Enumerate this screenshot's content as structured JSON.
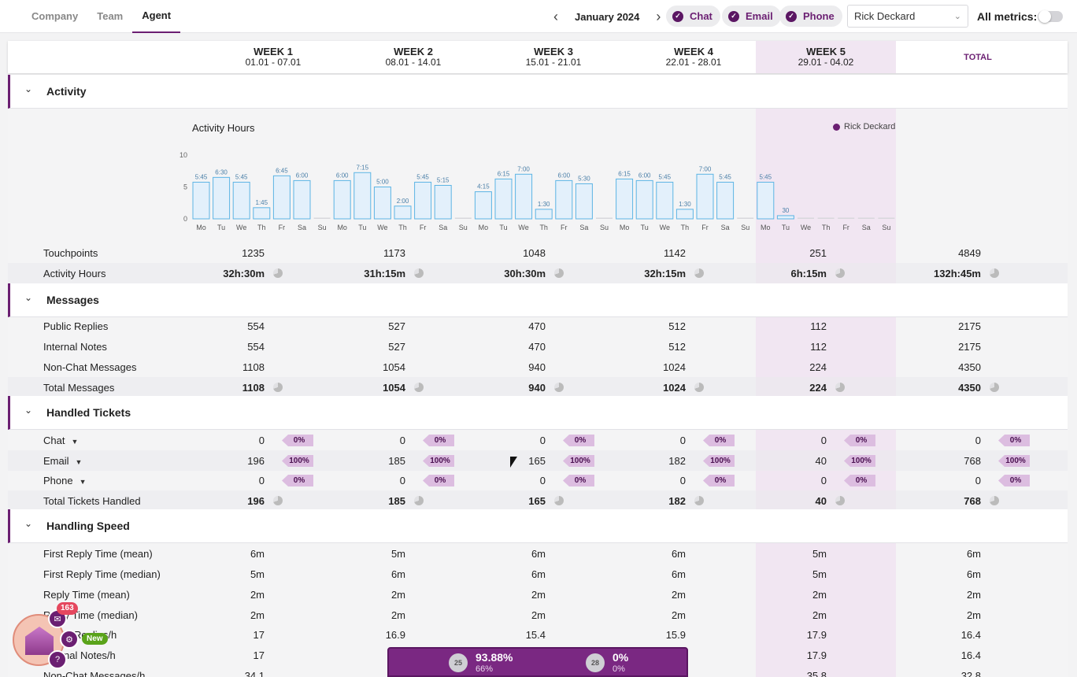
{
  "nav": {
    "tabs": [
      "Company",
      "Team",
      "Agent"
    ],
    "active": 2
  },
  "month": {
    "label": "January 2024"
  },
  "channels": [
    {
      "label": "Chat"
    },
    {
      "label": "Email"
    },
    {
      "label": "Phone"
    }
  ],
  "agent_select": {
    "value": "Rick Deckard"
  },
  "all_metrics": {
    "label": "All metrics:"
  },
  "weeks": [
    {
      "title": "WEEK 1",
      "range": "01.01 - 07.01"
    },
    {
      "title": "WEEK 2",
      "range": "08.01 - 14.01"
    },
    {
      "title": "WEEK 3",
      "range": "15.01 - 21.01"
    },
    {
      "title": "WEEK 4",
      "range": "22.01 - 28.01"
    },
    {
      "title": "WEEK 5",
      "range": "29.01 - 04.02"
    }
  ],
  "total_label": "TOTAL",
  "sections": {
    "activity": "Activity",
    "messages": "Messages",
    "handled": "Handled Tickets",
    "speed": "Handling Speed"
  },
  "chart_data": {
    "type": "bar",
    "title": "Activity Hours",
    "legend": [
      "Rick Deckard"
    ],
    "ylim": [
      0,
      10
    ],
    "yticks": [
      "0",
      "5",
      "10"
    ],
    "categories": [
      "Mo",
      "Tu",
      "We",
      "Th",
      "Fr",
      "Sa",
      "Su",
      "Mo",
      "Tu",
      "We",
      "Th",
      "Fr",
      "Sa",
      "Su",
      "Mo",
      "Tu",
      "We",
      "Th",
      "Fr",
      "Sa",
      "Su",
      "Mo",
      "Tu",
      "We",
      "Th",
      "Fr",
      "Sa",
      "Su",
      "Mo",
      "Tu",
      "We",
      "Th",
      "Fr",
      "Sa",
      "Su"
    ],
    "values": [
      5.75,
      6.5,
      5.75,
      1.75,
      6.75,
      6.0,
      0,
      6.0,
      7.25,
      5.0,
      2.0,
      5.75,
      5.25,
      0,
      4.25,
      6.25,
      7.0,
      1.5,
      6.0,
      5.5,
      0,
      6.25,
      6.0,
      5.75,
      1.5,
      7.0,
      5.75,
      0,
      5.75,
      0.5,
      0,
      0,
      0,
      0,
      0
    ],
    "labels": [
      "5:45",
      "6:30",
      "5:45",
      "1:45",
      "6:45",
      "6:00",
      "",
      "6:00",
      "7:15",
      "5:00",
      "2:00",
      "5:45",
      "5:15",
      "",
      "4:15",
      "6:15",
      "7:00",
      "1:30",
      "6:00",
      "5:30",
      "",
      "6:15",
      "6:00",
      "5:45",
      "1:30",
      "7:00",
      "5:45",
      "",
      "5:45",
      "30",
      "",
      "",
      "",
      "",
      ""
    ]
  },
  "activity_rows": [
    {
      "label": "Touchpoints",
      "values": [
        "1235",
        "1173",
        "1048",
        "1142",
        "251",
        "4849"
      ],
      "bold": false,
      "pie": false
    },
    {
      "label": "Activity Hours",
      "values": [
        "32h:30m",
        "31h:15m",
        "30h:30m",
        "32h:15m",
        "6h:15m",
        "132h:45m"
      ],
      "bold": true,
      "pie": true
    }
  ],
  "message_rows": [
    {
      "label": "Public Replies",
      "values": [
        "554",
        "527",
        "470",
        "512",
        "112",
        "2175"
      ],
      "bold": false,
      "pie": false
    },
    {
      "label": "Internal Notes",
      "values": [
        "554",
        "527",
        "470",
        "512",
        "112",
        "2175"
      ],
      "bold": false,
      "pie": false
    },
    {
      "label": "Non-Chat Messages",
      "values": [
        "1108",
        "1054",
        "940",
        "1024",
        "224",
        "4350"
      ],
      "bold": false,
      "pie": false
    },
    {
      "label": "Total Messages",
      "values": [
        "1108",
        "1054",
        "940",
        "1024",
        "224",
        "4350"
      ],
      "bold": true,
      "pie": true
    }
  ],
  "ticket_rows": [
    {
      "label": "Chat",
      "values": [
        "0",
        "0",
        "0",
        "0",
        "0",
        "0"
      ],
      "pcts": [
        "0%",
        "0%",
        "0%",
        "0%",
        "0%",
        "0%"
      ]
    },
    {
      "label": "Email",
      "values": [
        "196",
        "185",
        "165",
        "182",
        "40",
        "768"
      ],
      "pcts": [
        "100%",
        "100%",
        "100%",
        "100%",
        "100%",
        "100%"
      ]
    },
    {
      "label": "Phone",
      "values": [
        "0",
        "0",
        "0",
        "0",
        "0",
        "0"
      ],
      "pcts": [
        "0%",
        "0%",
        "0%",
        "0%",
        "0%",
        "0%"
      ]
    }
  ],
  "ticket_total": {
    "label": "Total Tickets Handled",
    "values": [
      "196",
      "185",
      "165",
      "182",
      "40",
      "768"
    ]
  },
  "speed_rows": [
    {
      "label": "First Reply Time (mean)",
      "values": [
        "6m",
        "5m",
        "6m",
        "6m",
        "5m",
        "6m"
      ]
    },
    {
      "label": "First Reply Time (median)",
      "values": [
        "5m",
        "6m",
        "6m",
        "6m",
        "5m",
        "6m"
      ]
    },
    {
      "label": "Reply Time (mean)",
      "values": [
        "2m",
        "2m",
        "2m",
        "2m",
        "2m",
        "2m"
      ]
    },
    {
      "label": "Reply Time (median)",
      "values": [
        "2m",
        "2m",
        "2m",
        "2m",
        "2m",
        "2m"
      ]
    },
    {
      "label": "Public Replies/h",
      "values": [
        "17",
        "16.9",
        "15.4",
        "15.9",
        "17.9",
        "16.4"
      ]
    },
    {
      "label": "Internal Notes/h",
      "values": [
        "17",
        "",
        "",
        "",
        "17.9",
        "16.4"
      ]
    },
    {
      "label": "Non-Chat Messages/h",
      "values": [
        "34.1",
        "",
        "",
        "",
        "35.8",
        "32.8"
      ]
    }
  ],
  "widgets": {
    "badge_count": "163",
    "new_label": "New",
    "icon_help": "?"
  },
  "score_bar": {
    "left_rank": "25",
    "left_main": "93.88%",
    "left_sub": "66%",
    "right_rank": "28",
    "right_main": "0%",
    "right_sub": "0%"
  }
}
